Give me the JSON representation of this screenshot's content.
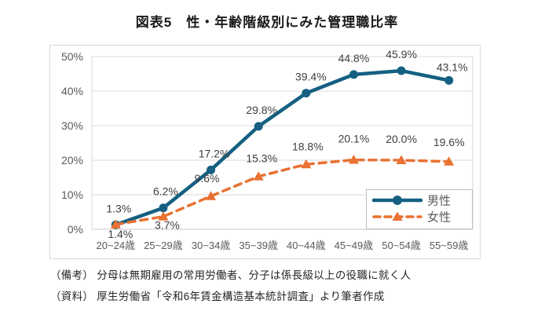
{
  "chart_data": {
    "type": "line",
    "title": "図表5　性・年齢階級別にみた管理職比率",
    "categories": [
      "20~24歳",
      "25~29歳",
      "30~34歳",
      "35~39歳",
      "40~44歳",
      "45~49歳",
      "50~54歳",
      "55~59歳"
    ],
    "series": [
      {
        "key": "male",
        "name": "男性",
        "color": "#156082",
        "line_style": "solid",
        "marker": "circle",
        "values": [
          1.3,
          6.2,
          17.2,
          29.8,
          39.4,
          44.8,
          45.9,
          43.1
        ],
        "labels": [
          "1.3%",
          "6.2%",
          "17.2%",
          "29.8%",
          "39.4%",
          "44.8%",
          "45.9%",
          "43.1%"
        ]
      },
      {
        "key": "female",
        "name": "女性",
        "color": "#e97132",
        "line_style": "dashed",
        "marker": "triangle",
        "values": [
          1.4,
          3.7,
          9.6,
          15.3,
          18.8,
          20.1,
          20.0,
          19.6
        ],
        "labels": [
          "1.4%",
          "3.7%",
          "9.6%",
          "15.3%",
          "18.8%",
          "20.1%",
          "20.0%",
          "19.6%"
        ]
      }
    ],
    "ylim": [
      0,
      50
    ],
    "ytick_labels": [
      "0%",
      "10%",
      "20%",
      "30%",
      "40%",
      "50%"
    ],
    "xlabel": "",
    "ylabel": "",
    "grid": "horizontal",
    "legend_position": "inside-bottom-right",
    "colors": {
      "grid": "#d9d9d9",
      "frame": "#d9d9d9",
      "axis_text": "#595959",
      "data_label_text": "#3f3f3f",
      "legend_text": "#595959",
      "background": "#ffffff"
    }
  },
  "notes": [
    "（備考） 分母は無期雇用の常用労働者、分子は係長級以上の役職に就く人",
    "（資料） 厚生労働省「令和6年賃金構造基本統計調査」より筆者作成"
  ]
}
